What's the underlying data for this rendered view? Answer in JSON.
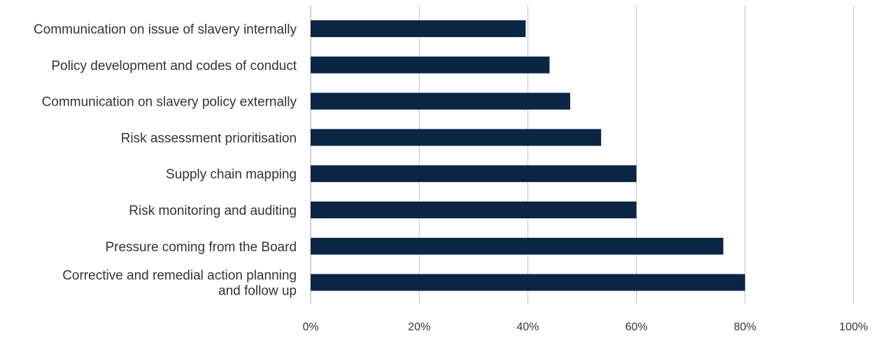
{
  "chart_data": {
    "type": "bar",
    "orientation": "horizontal",
    "title": "",
    "xlabel": "",
    "ylabel": "",
    "xlim": [
      0,
      100
    ],
    "x_ticks": [
      0,
      20,
      40,
      60,
      80,
      100
    ],
    "tick_labels": [
      "0%",
      "20%",
      "40%",
      "60%",
      "80%",
      "100%"
    ],
    "grid": true,
    "legend": "none",
    "bar_color": "#0b2545",
    "categories": [
      "Communication on issue of slavery internally",
      "Policy development and codes of conduct",
      "Communication on slavery policy externally",
      "Risk assessment prioritisation",
      "Supply chain mapping",
      "Risk monitoring and auditing",
      "Pressure coming from the Board",
      "Corrective and remedial action planning and follow up"
    ],
    "category_lines": [
      [
        "Communication on issue of slavery internally"
      ],
      [
        "Policy development and codes of conduct"
      ],
      [
        "Communication on slavery policy externally"
      ],
      [
        "Risk assessment prioritisation"
      ],
      [
        "Supply chain mapping"
      ],
      [
        "Risk monitoring and auditing"
      ],
      [
        "Pressure coming from the Board"
      ],
      [
        "Corrective and remedial action planning",
        "and follow up"
      ]
    ],
    "values": [
      39.6,
      44.0,
      47.8,
      53.5,
      60.0,
      60.0,
      76.0,
      80.0
    ]
  }
}
